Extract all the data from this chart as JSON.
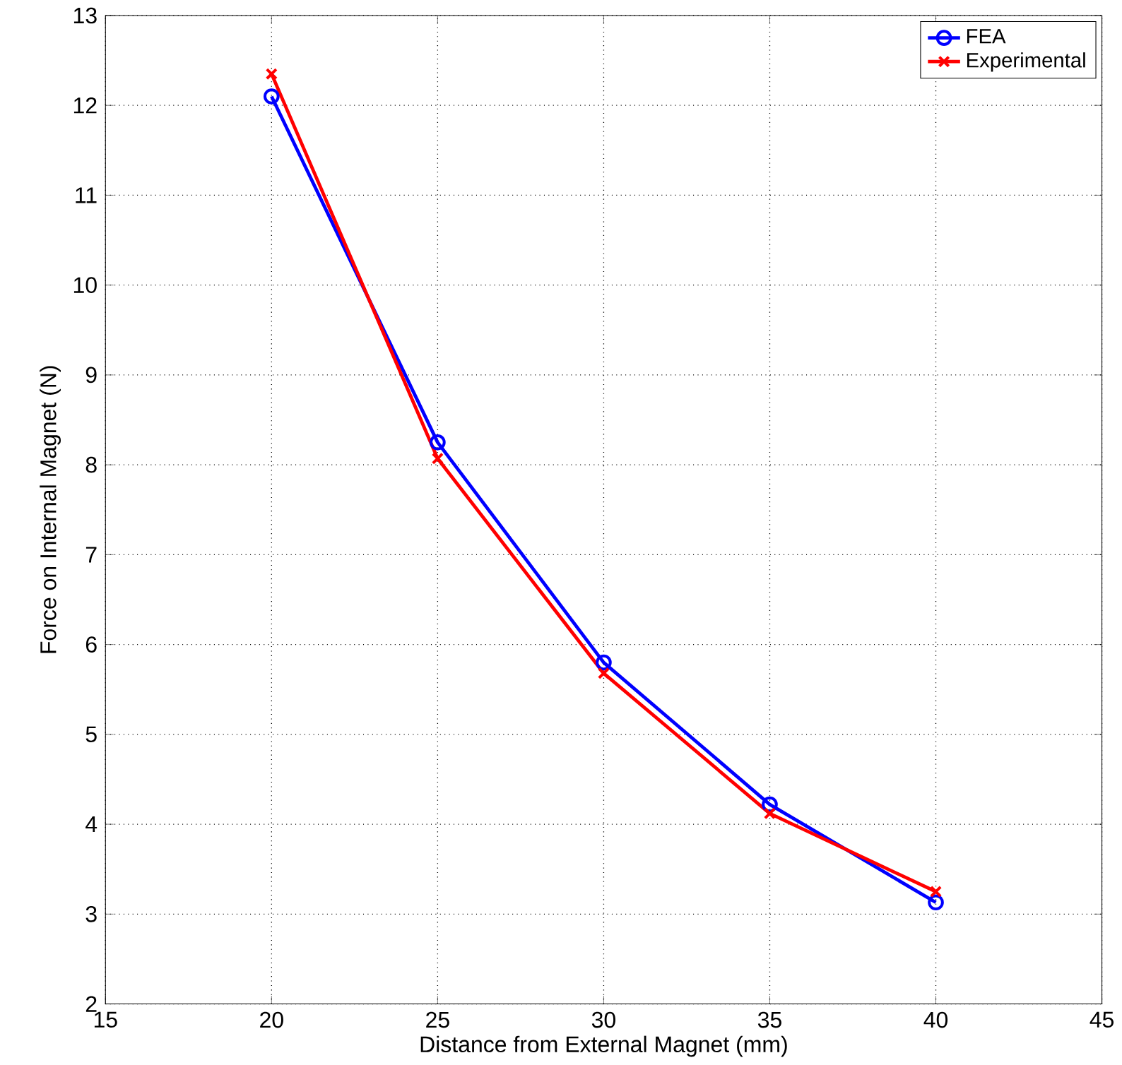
{
  "chart_data": {
    "type": "line",
    "xlabel": "Distance from External Magnet (mm)",
    "ylabel": "Force on Internal Magnet (N)",
    "x": [
      20,
      25,
      30,
      35,
      40
    ],
    "series": [
      {
        "name": "FEA",
        "color": "#0000ff",
        "marker": "circle",
        "values": [
          12.1,
          8.25,
          5.8,
          4.22,
          3.13
        ]
      },
      {
        "name": "Experimental",
        "color": "#ff0000",
        "marker": "cross",
        "values": [
          12.35,
          8.07,
          5.68,
          4.12,
          3.25
        ]
      }
    ],
    "xlim": [
      15,
      45
    ],
    "ylim": [
      2,
      13
    ],
    "xticks": [
      15,
      20,
      25,
      30,
      35,
      40,
      45
    ],
    "yticks": [
      2,
      3,
      4,
      5,
      6,
      7,
      8,
      9,
      10,
      11,
      12,
      13
    ],
    "grid": true,
    "legend": "top right",
    "line_style": "solid"
  }
}
